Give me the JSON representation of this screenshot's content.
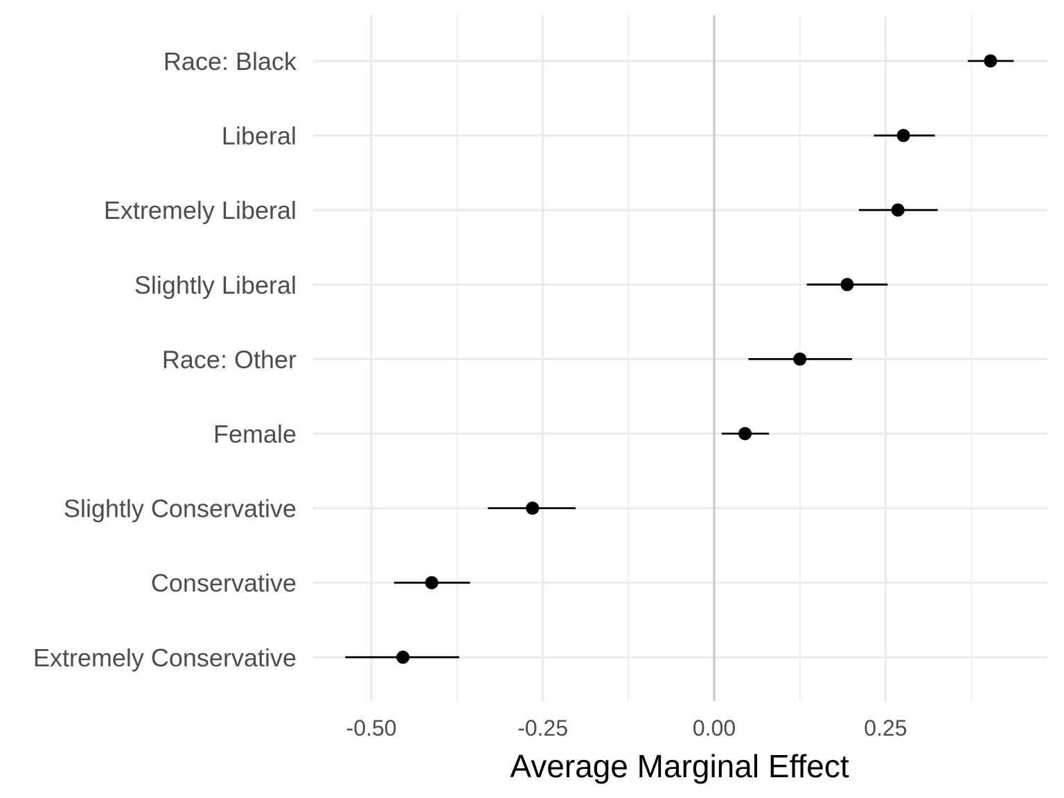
{
  "chart_data": {
    "type": "scatter",
    "subtype": "coefficient-plot-with-error-bars",
    "title": "",
    "xlabel": "Average Marginal Effect",
    "ylabel": "",
    "xlim": [
      -0.585,
      0.486
    ],
    "x_ticks": [
      -0.5,
      -0.25,
      0.0,
      0.25
    ],
    "x_tick_labels": [
      "-0.50",
      "-0.25",
      "0.00",
      "0.25"
    ],
    "x_minor_ticks": [
      -0.375,
      -0.125,
      0.125,
      0.375
    ],
    "reference_line": 0.0,
    "grid": true,
    "legend": "none",
    "categories": [
      "Race: Black",
      "Liberal",
      "Extremely Liberal",
      "Slightly Liberal",
      "Race: Other",
      "Female",
      "Slightly Conservative",
      "Conservative",
      "Extremely Conservative"
    ],
    "estimates": [
      0.403,
      0.276,
      0.268,
      0.194,
      0.125,
      0.045,
      -0.265,
      -0.412,
      -0.454
    ],
    "ci_low": [
      0.37,
      0.233,
      0.211,
      0.135,
      0.05,
      0.011,
      -0.33,
      -0.467,
      -0.538
    ],
    "ci_high": [
      0.437,
      0.322,
      0.326,
      0.253,
      0.201,
      0.08,
      -0.202,
      -0.356,
      -0.372
    ]
  },
  "colors": {
    "background": "#ffffff",
    "grid_major": "#ebebeb",
    "grid_minor": "#ebebeb",
    "reference": "#c8c8c8",
    "point": "#000000",
    "errorbar": "#000000",
    "tick_text": "#4d4d4d",
    "axis_title": "#000000"
  }
}
